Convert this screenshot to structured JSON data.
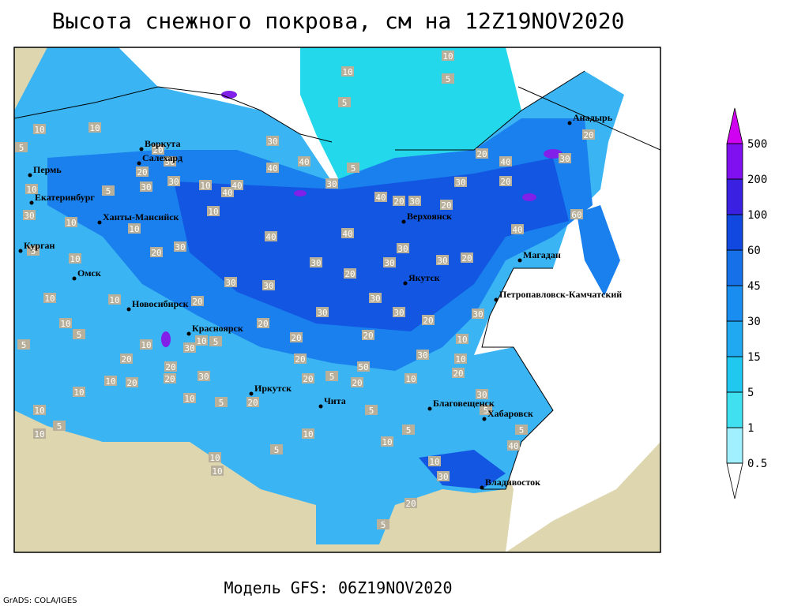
{
  "title": "Высота снежного покрова, см на 12Z19NOV2020",
  "footer": "Модель GFS: 06Z19NOV2020",
  "credit": "GrADS: COLA/IGES",
  "cities": [
    "Анадырь",
    "Воркута",
    "Салехард",
    "Пермь",
    "Екатеринбург",
    "Ханты-Мансийск",
    "Курган",
    "Омск",
    "Новосибирск",
    "Красноярск",
    "Верхоянск",
    "Магадан",
    "Якутск",
    "Петропавловск-Камчатский",
    "Иркутск",
    "Чита",
    "Благовещенск",
    "Хабаровск",
    "Владивосток"
  ],
  "contour_labels": [
    10,
    10,
    5,
    5,
    10,
    5,
    10,
    30,
    20,
    30,
    20,
    30,
    30,
    40,
    40,
    5,
    30,
    10,
    40,
    40,
    10,
    10,
    5,
    10,
    30,
    10,
    5,
    10,
    20,
    30,
    40,
    40,
    40,
    20,
    30,
    20,
    30,
    20,
    20,
    40,
    30,
    20,
    60,
    40,
    20,
    30,
    30,
    30,
    30,
    20,
    30,
    30,
    10,
    10,
    20,
    30,
    30,
    30,
    20,
    30,
    10,
    5,
    5,
    20,
    20,
    20,
    10,
    10,
    5,
    10,
    30,
    20,
    20,
    10,
    20,
    20,
    30,
    30,
    10,
    50,
    20,
    10,
    20,
    5,
    20,
    20,
    10,
    10,
    5,
    10,
    10,
    5,
    20,
    5,
    5,
    10,
    10,
    5,
    30,
    5,
    5,
    40,
    10,
    30,
    10,
    10,
    20,
    5
  ],
  "colorbar": {
    "levels": [
      0.5,
      1,
      5,
      15,
      30,
      45,
      60,
      100,
      200,
      500
    ],
    "colors": [
      "#ffffff",
      "#a0f0ff",
      "#40e0f0",
      "#20c8f0",
      "#20a8f0",
      "#1a8ef0",
      "#1670e8",
      "#1048e0",
      "#3a20e0",
      "#8010f0",
      "#d000f0"
    ]
  }
}
